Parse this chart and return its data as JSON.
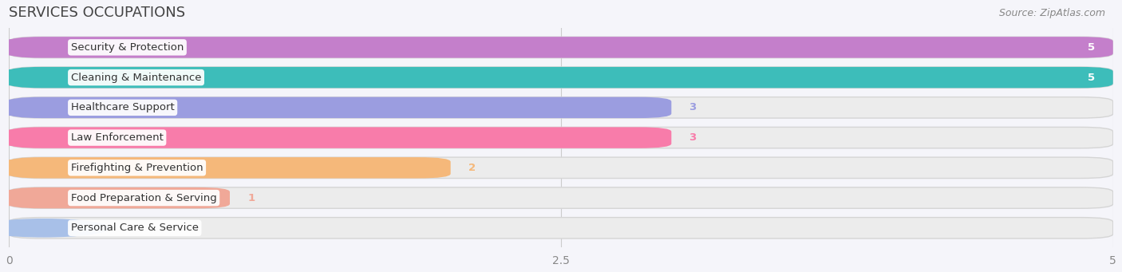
{
  "title": "SERVICES OCCUPATIONS",
  "source": "Source: ZipAtlas.com",
  "categories": [
    "Security & Protection",
    "Cleaning & Maintenance",
    "Healthcare Support",
    "Law Enforcement",
    "Firefighting & Prevention",
    "Food Preparation & Serving",
    "Personal Care & Service"
  ],
  "values": [
    5,
    5,
    3,
    3,
    2,
    1,
    0
  ],
  "bar_colors": [
    "#c47fcb",
    "#3dbdba",
    "#9b9de0",
    "#f87caa",
    "#f5b87a",
    "#f0a898",
    "#a8c0e8"
  ],
  "bar_bg_color": "#ececec",
  "xlim": [
    0,
    5
  ],
  "xticks": [
    0,
    2.5,
    5
  ],
  "background_color": "#f5f5fa",
  "title_fontsize": 13,
  "label_fontsize": 9.5,
  "value_fontsize": 9.5
}
